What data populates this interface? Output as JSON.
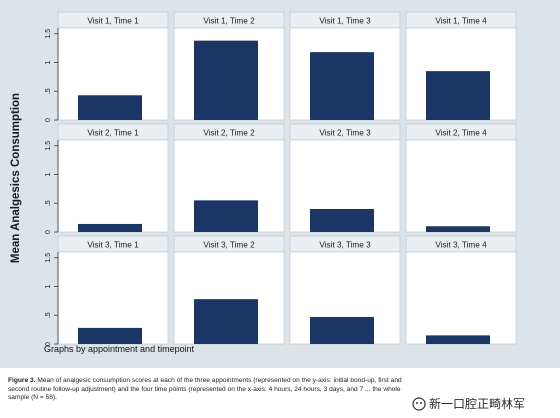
{
  "figure": {
    "footer_note": "Graphs by appointment and timepoint",
    "caption_label": "Figure 3.",
    "caption_text": "Mean of analgesic consumption scores at each of the three appointments (represented on the y-axis: initial bond-up, first and second routine follow-up adjustment) and the four time points (represented on the x-axis: 4 hours, 24 hours, 3 days, and 7 ... the whole sample (N = 58).",
    "watermark_text": "新一口腔正畸林军"
  },
  "colors": {
    "background": "#dce4ea",
    "plot_area": "#ffffff",
    "strip": "#e9eef2",
    "bar": "#1b3565",
    "axis": "#333333"
  },
  "chart_data": {
    "type": "bar",
    "title": "",
    "xlabel": "",
    "ylabel": "Mean Analgesics Consumption",
    "ylim": [
      0,
      1.6
    ],
    "yticks": [
      0,
      0.5,
      1,
      1.5
    ],
    "ytick_labels": [
      "0",
      ".5",
      "1",
      "1.5"
    ],
    "grid": false,
    "panels": [
      {
        "title": "Visit 1, Time 1",
        "value": 0.43
      },
      {
        "title": "Visit 1, Time 2",
        "value": 1.38
      },
      {
        "title": "Visit 1, Time 3",
        "value": 1.18
      },
      {
        "title": "Visit 1, Time 4",
        "value": 0.85
      },
      {
        "title": "Visit 2, Time 1",
        "value": 0.14
      },
      {
        "title": "Visit 2, Time 2",
        "value": 0.55
      },
      {
        "title": "Visit 2, Time 3",
        "value": 0.4
      },
      {
        "title": "Visit 2, Time 4",
        "value": 0.1
      },
      {
        "title": "Visit 3, Time 1",
        "value": 0.28
      },
      {
        "title": "Visit 3, Time 2",
        "value": 0.78
      },
      {
        "title": "Visit 3, Time 3",
        "value": 0.47
      },
      {
        "title": "Visit 3, Time 4",
        "value": 0.15
      }
    ]
  }
}
